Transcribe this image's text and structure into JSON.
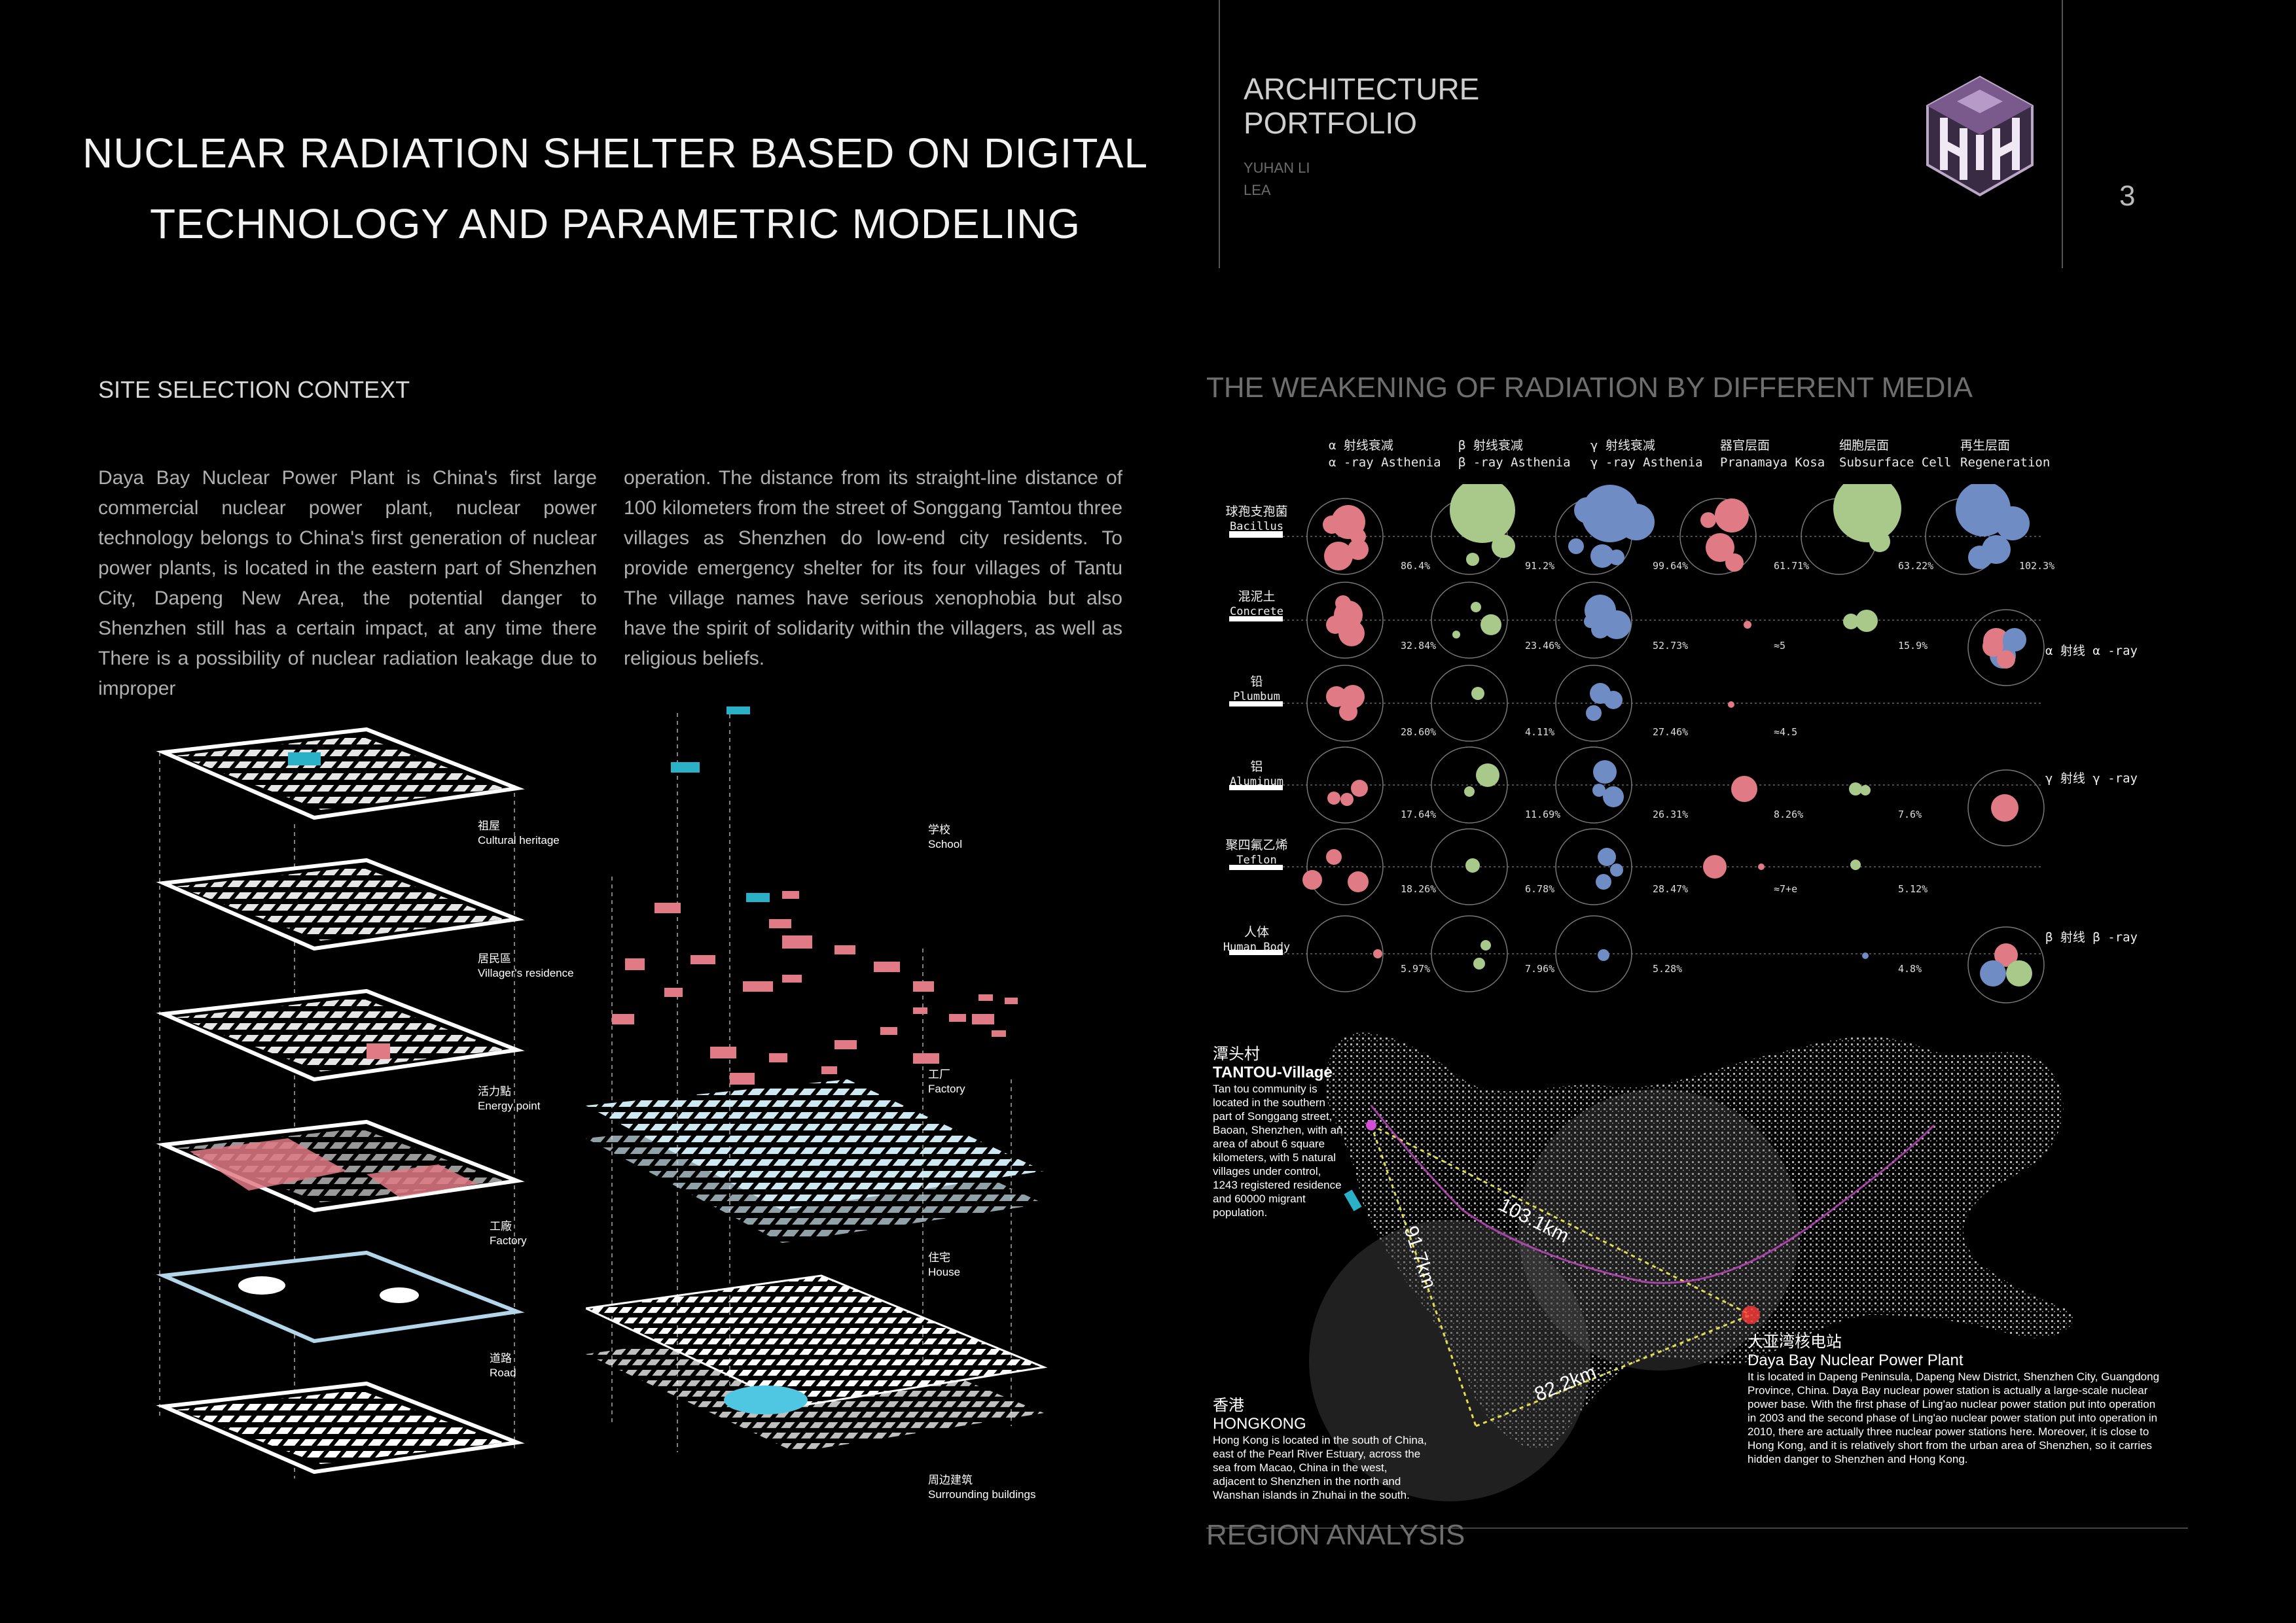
{
  "header": {
    "title_line1": "NUCLEAR RADIATION SHELTER BASED ON DIGITAL",
    "title_line2": "TECHNOLOGY AND PARAMETRIC MODELING",
    "brand_line1": "ARCHITECTURE",
    "brand_line2": "PORTFOLIO",
    "author": "YUHAN LI",
    "author_alias": "LEA",
    "page_number": "3"
  },
  "site": {
    "heading": "SITE SELECTION CONTEXT",
    "col1": "Daya Bay Nuclear Power Plant is China's first large commercial nuclear power plant, nuclear power technology belongs to China's first generation of nuclear power plants, is located in the eastern part of Shenzhen City, Dapeng New Area, the potential danger to Shenzhen still has a certain impact, at any time there There is a possibility of nuclear radiation leakage due to improper",
    "col2": "operation. The distance from its straight-line distance of 100 kilometers from the street of Songgang Tamtou three villages as Shenzhen do low-end city residents. To provide emergency shelter for its four villages of Tantu The village names have serious xenophobia but also have the spirit of solidarity within the villagers, as well as religious beliefs.",
    "layers": [
      {
        "zh": "祖屋",
        "en": "Cultural heritage"
      },
      {
        "zh": "居民區",
        "en": "Villager's residence"
      },
      {
        "zh": "活力點",
        "en": "Energy point"
      },
      {
        "zh": "工廠",
        "en": "Factory"
      },
      {
        "zh": "道路",
        "en": "Road"
      }
    ],
    "explode_labels": [
      {
        "zh": "学校",
        "en": "School"
      },
      {
        "zh": "工厂",
        "en": "Factory"
      },
      {
        "zh": "住宅",
        "en": "House"
      },
      {
        "zh": "周边建筑",
        "en": "Surrounding buildings"
      }
    ]
  },
  "radiation": {
    "heading": "THE WEAKENING OF RADIATION BY DIFFERENT MEDIA",
    "columns": [
      {
        "zh": "α 射线衰减",
        "en": "α -ray Asthenia"
      },
      {
        "zh": "β 射线衰减",
        "en": "β -ray Asthenia"
      },
      {
        "zh": "γ 射线衰减",
        "en": "γ -ray Asthenia"
      },
      {
        "zh": "器官层面",
        "en": "Pranamaya Kosa"
      },
      {
        "zh": "细胞层面",
        "en": "Subsurface Cell"
      },
      {
        "zh": "再生层面",
        "en": "Regeneration"
      }
    ],
    "rows": [
      {
        "zh": "球孢支孢菌",
        "en": "Bacillus",
        "values": [
          "86.4%",
          "91.2%",
          "99.64%",
          "61.71%",
          "63.22%",
          "102.3%"
        ]
      },
      {
        "zh": "混泥土",
        "en": "Concrete",
        "values": [
          "32.84%",
          "23.46%",
          "52.73%",
          "≈5",
          "15.9%",
          ""
        ]
      },
      {
        "zh": "铅",
        "en": "Plumbum",
        "values": [
          "28.60%",
          "4.11%",
          "27.46%",
          "≈4.5",
          "",
          ""
        ]
      },
      {
        "zh": "铝",
        "en": "Aluminum",
        "values": [
          "17.64%",
          "11.69%",
          "26.31%",
          "8.26%",
          "7.6%",
          ""
        ]
      },
      {
        "zh": "聚四氟乙烯",
        "en": "Teflon",
        "values": [
          "18.26%",
          "6.78%",
          "28.47%",
          "≈7+e",
          "5.12%",
          ""
        ]
      },
      {
        "zh": "人体",
        "en": "Human Body",
        "values": [
          "5.97%",
          "7.96%",
          "5.28%",
          "",
          "4.8%",
          ""
        ]
      }
    ],
    "legend": [
      {
        "label": "α 射线 α -ray"
      },
      {
        "label": "γ 射线 γ -ray"
      },
      {
        "label": "β 射线 β -ray"
      }
    ],
    "colors": {
      "alpha": "#e07a85",
      "beta": "#a8c98a",
      "gamma": "#6f8cc4"
    }
  },
  "region": {
    "heading": "REGION ANALYSIS",
    "tantou_zh": "潭头村",
    "tantou_en": "TANTOU-Village",
    "tantou_desc": "Tan tou community is located in the southern part of Songgang street, Baoan, Shenzhen, with an area of about 6 square kilometers, with 5 natural villages under control, 1243 registered residence and 60000 migrant population.",
    "hk_zh": "香港",
    "hk_en": "HONGKONG",
    "hk_desc": "Hong Kong is located in the south of China, east of the Pearl River Estuary, across the sea from Macao, China in the west, adjacent to Shenzhen in the north and Wanshan islands in Zhuhai in the south.",
    "plant_zh": "大亚湾核电站",
    "plant_en": "Daya Bay Nuclear Power Plant",
    "plant_desc": "It is located in Dapeng Peninsula, Dapeng New District, Shenzhen City, Guangdong Province, China. Daya Bay nuclear power station is actually a large-scale nuclear power base. With the first phase of Ling'ao nuclear power station put into operation in 2003 and the second phase of Ling'ao nuclear power station put into operation in 2010, there are actually three nuclear power stations here. Moreover, it is close to Hong Kong, and it is relatively short from the urban area of Shenzhen, so it carries hidden danger to Shenzhen and Hong Kong.",
    "dist1": "103.1km",
    "dist2": "91.7km",
    "dist3": "82.2km"
  }
}
